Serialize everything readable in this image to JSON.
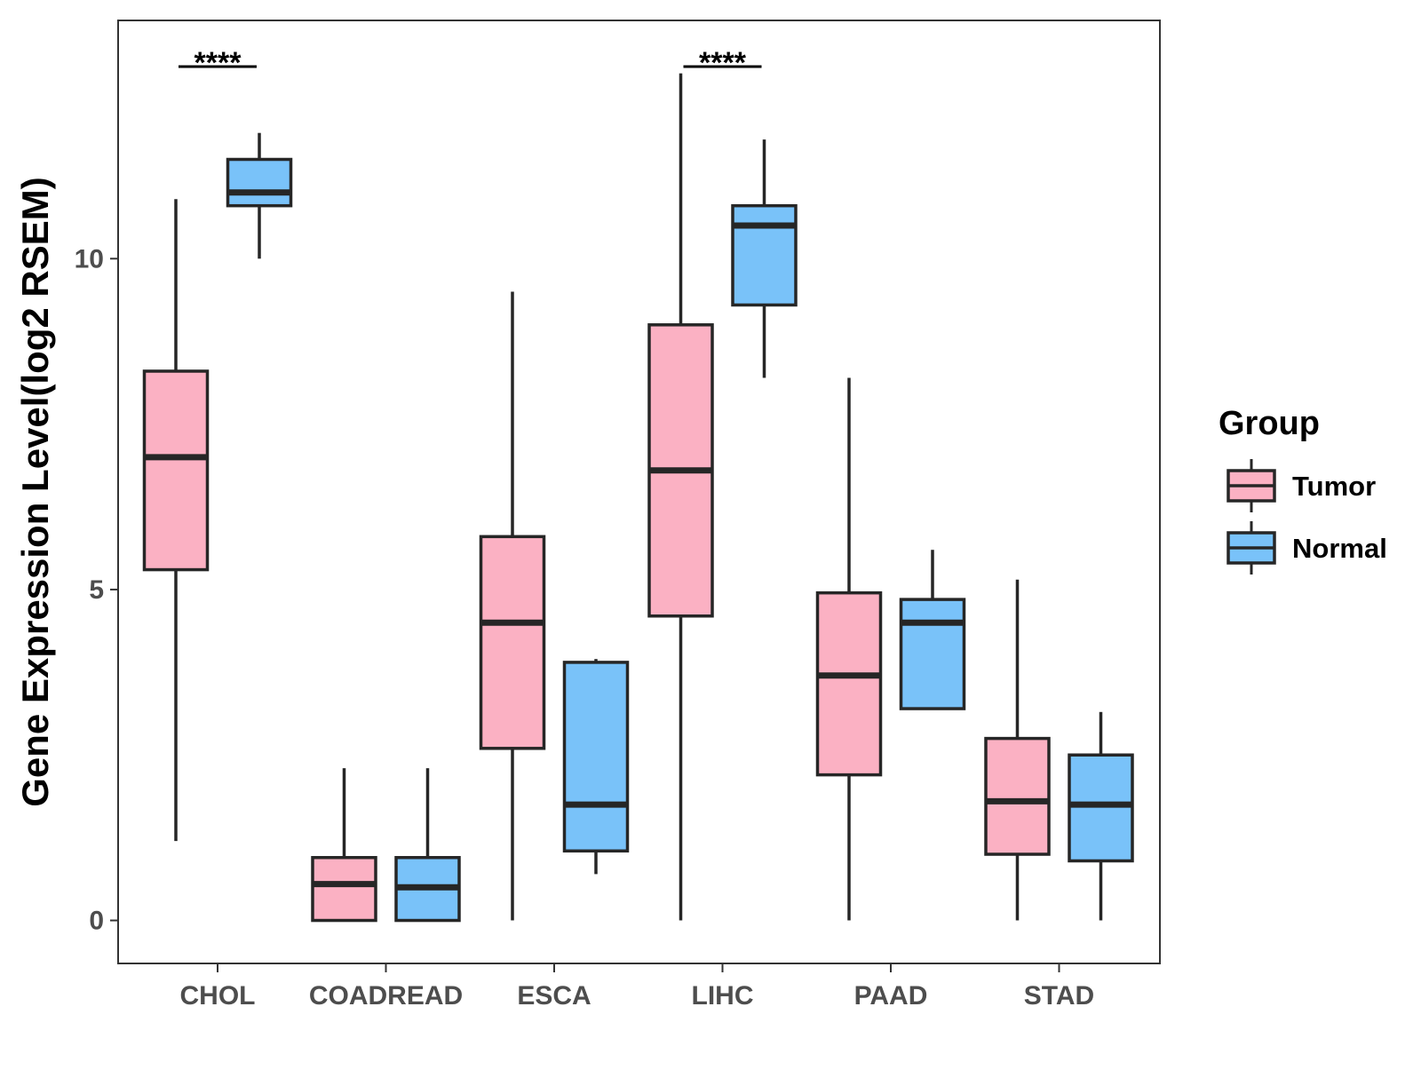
{
  "chart_data": {
    "type": "boxplot",
    "title": "",
    "xlabel": "",
    "ylabel": "Gene Expression Level(log2 RSEM)",
    "ylim": [
      -0.65,
      13.6
    ],
    "yticks": [
      0,
      5,
      10
    ],
    "ytick_labels": [
      "0",
      "5",
      "10"
    ],
    "grid": false,
    "legend": {
      "title": "Group",
      "position": "right",
      "entries": [
        {
          "name": "Tumor",
          "color": "#FBB1C3"
        },
        {
          "name": "Normal",
          "color": "#79C2F9"
        }
      ]
    },
    "categories": [
      "CHOL",
      "COADREAD",
      "ESCA",
      "LIHC",
      "PAAD",
      "STAD"
    ],
    "series": [
      {
        "name": "Tumor",
        "color": "#FBB1C3",
        "boxes": [
          {
            "min": 1.2,
            "q1": 5.3,
            "median": 7.0,
            "q3": 8.3,
            "max": 10.9
          },
          {
            "min": 0.0,
            "q1": 0.0,
            "median": 0.55,
            "q3": 0.95,
            "max": 2.3
          },
          {
            "min": 0.0,
            "q1": 2.6,
            "median": 4.5,
            "q3": 5.8,
            "max": 9.5
          },
          {
            "min": 0.0,
            "q1": 4.6,
            "median": 6.8,
            "q3": 9.0,
            "max": 12.8
          },
          {
            "min": 0.0,
            "q1": 2.2,
            "median": 3.7,
            "q3": 4.95,
            "max": 8.2
          },
          {
            "min": 0.0,
            "q1": 1.0,
            "median": 1.8,
            "q3": 2.75,
            "max": 5.15
          }
        ]
      },
      {
        "name": "Normal",
        "color": "#79C2F9",
        "boxes": [
          {
            "min": 10.0,
            "q1": 10.8,
            "median": 11.0,
            "q3": 11.5,
            "max": 11.9
          },
          {
            "min": 0.0,
            "q1": 0.0,
            "median": 0.5,
            "q3": 0.95,
            "max": 2.3
          },
          {
            "min": 0.7,
            "q1": 1.05,
            "median": 1.75,
            "q3": 3.9,
            "max": 3.95
          },
          {
            "min": 8.2,
            "q1": 9.3,
            "median": 10.5,
            "q3": 10.8,
            "max": 11.8
          },
          {
            "min": null,
            "q1": 3.2,
            "median": 4.5,
            "q3": 4.85,
            "max": 5.6
          },
          {
            "min": 0.0,
            "q1": 0.9,
            "median": 1.75,
            "q3": 2.5,
            "max": 3.15
          }
        ]
      }
    ],
    "annotations": [
      {
        "category": "CHOL",
        "label": "****"
      },
      {
        "category": "LIHC",
        "label": "****"
      }
    ]
  },
  "colors": {
    "box_stroke": "#262626",
    "panel_border": "#333333",
    "tick_text": "#4d4d4d"
  }
}
